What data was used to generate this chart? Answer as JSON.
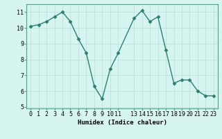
{
  "x": [
    0,
    1,
    2,
    3,
    4,
    5,
    6,
    7,
    8,
    9,
    10,
    11,
    13,
    14,
    15,
    16,
    17,
    18,
    19,
    20,
    21,
    22,
    23
  ],
  "y": [
    10.1,
    10.2,
    10.4,
    10.7,
    11.0,
    10.4,
    9.3,
    8.4,
    6.3,
    5.5,
    7.4,
    8.4,
    10.6,
    11.1,
    10.4,
    10.7,
    8.6,
    6.5,
    6.7,
    6.7,
    6.0,
    5.7,
    5.7
  ],
  "xlim": [
    -0.5,
    23.5
  ],
  "ylim": [
    4.9,
    11.5
  ],
  "yticks": [
    5,
    6,
    7,
    8,
    9,
    10,
    11
  ],
  "xticks": [
    0,
    1,
    2,
    3,
    4,
    5,
    6,
    7,
    8,
    9,
    10,
    11,
    13,
    14,
    15,
    16,
    17,
    18,
    19,
    20,
    21,
    22,
    23
  ],
  "xlabel": "Humidex (Indice chaleur)",
  "line_color": "#2e7d6e",
  "marker": "D",
  "marker_size": 2.5,
  "bg_color": "#d6f5f0",
  "grid_color": "#b8ddd8",
  "axes_color": "#5a9a8a",
  "label_fontsize": 6.5,
  "tick_fontsize": 6
}
